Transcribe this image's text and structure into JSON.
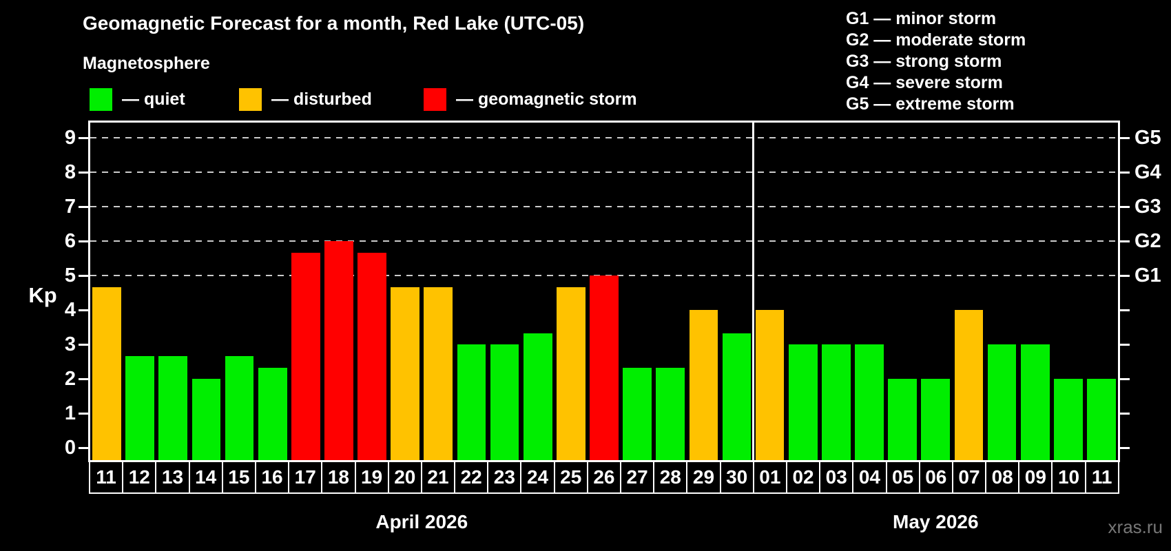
{
  "header": {
    "title": "Geomagnetic Forecast for a month, Red Lake (UTC-05)",
    "subtitle": "Magnetosphere"
  },
  "legend": {
    "items": [
      {
        "key": "quiet",
        "label": "— quiet",
        "color": "#00ee00"
      },
      {
        "key": "disturbed",
        "label": "— disturbed",
        "color": "#ffc200"
      },
      {
        "key": "storm",
        "label": "— geomagnetic storm",
        "color": "#ff0000"
      }
    ]
  },
  "g_legend": {
    "items": [
      "G1 — minor storm",
      "G2 — moderate storm",
      "G3 — strong storm",
      "G4 — severe storm",
      "G5 — extreme storm"
    ]
  },
  "watermark": "xras.ru",
  "chart_data": {
    "type": "bar",
    "title": "Geomagnetic Forecast for a month, Red Lake (UTC-05)",
    "ylabel": "Kp",
    "ylim": [
      0,
      9
    ],
    "y_ticks": [
      0,
      1,
      2,
      3,
      4,
      5,
      6,
      7,
      8,
      9
    ],
    "gridlines_at_kp": [
      5,
      6,
      7,
      8,
      9
    ],
    "grid": "dashed",
    "right_axis": [
      {
        "kp": 5,
        "label": "G1"
      },
      {
        "kp": 6,
        "label": "G2"
      },
      {
        "kp": 7,
        "label": "G3"
      },
      {
        "kp": 8,
        "label": "G4"
      },
      {
        "kp": 9,
        "label": "G5"
      }
    ],
    "status_colors": {
      "quiet": "#00ee00",
      "disturbed": "#ffc200",
      "storm": "#ff0000"
    },
    "months": [
      {
        "label": "April 2026",
        "days": [
          {
            "day": "11",
            "kp": 4.67,
            "status": "disturbed"
          },
          {
            "day": "12",
            "kp": 2.67,
            "status": "quiet"
          },
          {
            "day": "13",
            "kp": 2.67,
            "status": "quiet"
          },
          {
            "day": "14",
            "kp": 2.0,
            "status": "quiet"
          },
          {
            "day": "15",
            "kp": 2.67,
            "status": "quiet"
          },
          {
            "day": "16",
            "kp": 2.33,
            "status": "quiet"
          },
          {
            "day": "17",
            "kp": 5.67,
            "status": "storm"
          },
          {
            "day": "18",
            "kp": 6.0,
            "status": "storm"
          },
          {
            "day": "19",
            "kp": 5.67,
            "status": "storm"
          },
          {
            "day": "20",
            "kp": 4.67,
            "status": "disturbed"
          },
          {
            "day": "21",
            "kp": 4.67,
            "status": "disturbed"
          },
          {
            "day": "22",
            "kp": 3.0,
            "status": "quiet"
          },
          {
            "day": "23",
            "kp": 3.0,
            "status": "quiet"
          },
          {
            "day": "24",
            "kp": 3.33,
            "status": "quiet"
          },
          {
            "day": "25",
            "kp": 4.67,
            "status": "disturbed"
          },
          {
            "day": "26",
            "kp": 5.0,
            "status": "storm"
          },
          {
            "day": "27",
            "kp": 2.33,
            "status": "quiet"
          },
          {
            "day": "28",
            "kp": 2.33,
            "status": "quiet"
          },
          {
            "day": "29",
            "kp": 4.0,
            "status": "disturbed"
          },
          {
            "day": "30",
            "kp": 3.33,
            "status": "quiet"
          }
        ]
      },
      {
        "label": "May 2026",
        "days": [
          {
            "day": "01",
            "kp": 4.0,
            "status": "disturbed"
          },
          {
            "day": "02",
            "kp": 3.0,
            "status": "quiet"
          },
          {
            "day": "03",
            "kp": 3.0,
            "status": "quiet"
          },
          {
            "day": "04",
            "kp": 3.0,
            "status": "quiet"
          },
          {
            "day": "05",
            "kp": 2.0,
            "status": "quiet"
          },
          {
            "day": "06",
            "kp": 2.0,
            "status": "quiet"
          },
          {
            "day": "07",
            "kp": 4.0,
            "status": "disturbed"
          },
          {
            "day": "08",
            "kp": 3.0,
            "status": "quiet"
          },
          {
            "day": "09",
            "kp": 3.0,
            "status": "quiet"
          },
          {
            "day": "10",
            "kp": 2.0,
            "status": "quiet"
          },
          {
            "day": "11",
            "kp": 2.0,
            "status": "quiet"
          }
        ]
      }
    ]
  }
}
